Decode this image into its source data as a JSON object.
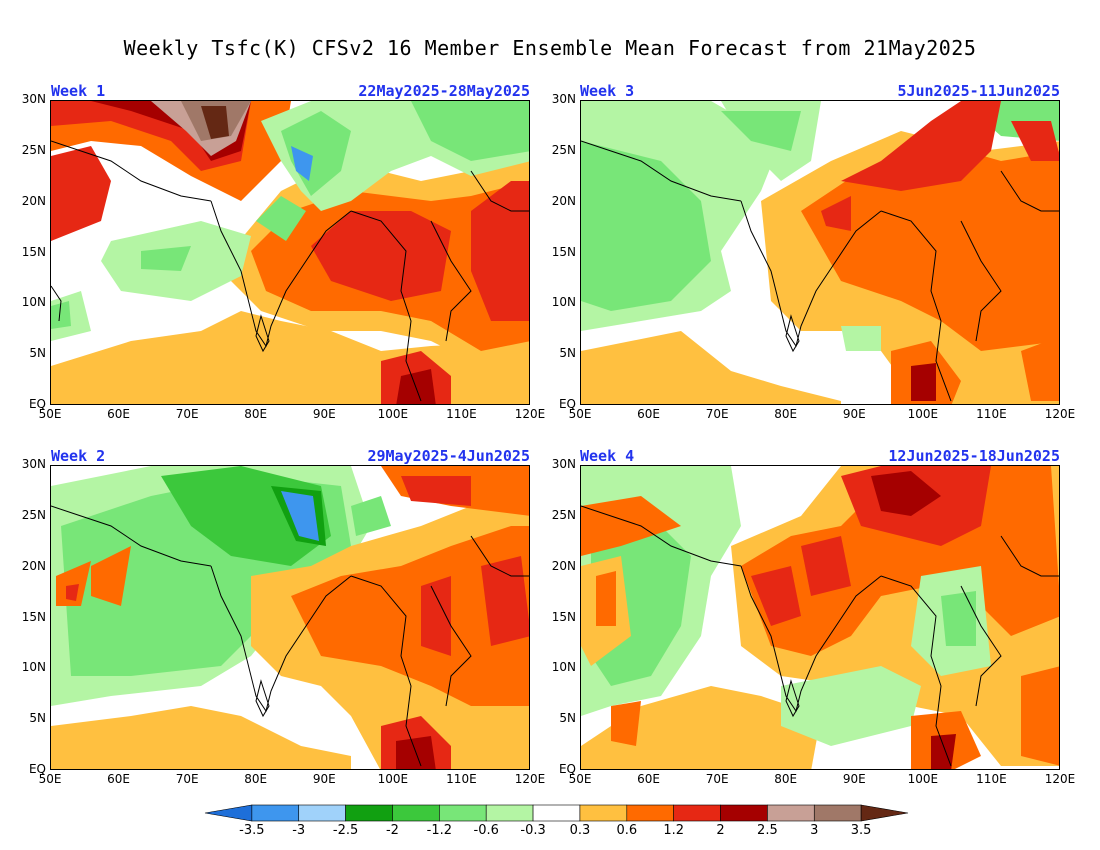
{
  "title": "Weekly Tsfc(K) CFSv2 16 Member Ensemble Mean Forecast from 21May2025",
  "panels": [
    {
      "id": "week1",
      "label": "Week 1",
      "dates": "22May2025-28May2025"
    },
    {
      "id": "week3",
      "label": "Week 3",
      "dates": "5Jun2025-11Jun2025"
    },
    {
      "id": "week2",
      "label": "Week 2",
      "dates": "29May2025-4Jun2025"
    },
    {
      "id": "week4",
      "label": "Week 4",
      "dates": "12Jun2025-18Jun2025"
    }
  ],
  "axes": {
    "lat_labels": [
      "30N",
      "25N",
      "20N",
      "15N",
      "10N",
      "5N",
      "EQ"
    ],
    "lon_labels": [
      "50E",
      "60E",
      "70E",
      "80E",
      "90E",
      "100E",
      "110E",
      "120E"
    ],
    "lon_range": [
      50,
      120
    ],
    "lat_range": [
      0,
      30
    ]
  },
  "colorbar": {
    "labels": [
      "-3.5",
      "-3",
      "-2.5",
      "-2",
      "-1.2",
      "-0.6",
      "-0.3",
      "0.3",
      "0.6",
      "1.2",
      "2",
      "2.5",
      "3",
      "3.5"
    ],
    "colors": [
      "#1e6fd9",
      "#3e96ee",
      "#a0d2fa",
      "#11a011",
      "#3cc83c",
      "#78e678",
      "#b4f5a4",
      "#ffffff",
      "#ffc040",
      "#ff6a00",
      "#e62814",
      "#a50000",
      "#c8a096",
      "#a07868",
      "#642814"
    ]
  }
}
